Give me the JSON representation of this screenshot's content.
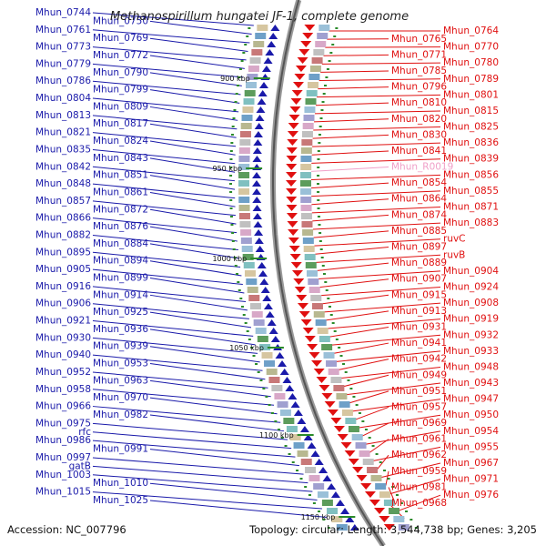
{
  "title": "Methanospirillum hungatei JF-1, complete genome",
  "footer": {
    "accession": "Accession: NC_007796",
    "topology": "Topology: circular; Length: 3,544,738 bp; Genes: 3,205"
  },
  "colors": {
    "left_strand": "#1a1aaa",
    "right_strand": "#e01010",
    "rna": "#f0a0c8",
    "backbone": "#777777"
  },
  "kbp_markers": [
    "900 kbp",
    "950 kbp",
    "1000 kbp",
    "1050 kbp",
    "1100 kbp",
    "1150 kbp"
  ],
  "left_labels": [
    "Mhun_0744",
    "Mhun_0750",
    "Mhun_0761",
    "Mhun_0769",
    "Mhun_0773",
    "Mhun_0772",
    "Mhun_0779",
    "Mhun_0790",
    "Mhun_0786",
    "Mhun_0799",
    "Mhun_0804",
    "Mhun_0809",
    "Mhun_0813",
    "Mhun_0817",
    "Mhun_0821",
    "Mhun_0824",
    "Mhun_0835",
    "Mhun_0843",
    "Mhun_0842",
    "Mhun_0851",
    "Mhun_0848",
    "Mhun_0861",
    "Mhun_0857",
    "Mhun_0872",
    "Mhun_0866",
    "Mhun_0876",
    "Mhun_0882",
    "Mhun_0884",
    "Mhun_0895",
    "Mhun_0894",
    "Mhun_0905",
    "Mhun_0899",
    "Mhun_0916",
    "Mhun_0914",
    "Mhun_0906",
    "Mhun_0925",
    "Mhun_0921",
    "Mhun_0936",
    "Mhun_0930",
    "Mhun_0939",
    "Mhun_0940",
    "Mhun_0953",
    "Mhun_0952",
    "Mhun_0963",
    "Mhun_0958",
    "Mhun_0970",
    "Mhun_0966",
    "Mhun_0982",
    "Mhun_0975",
    "rfc",
    "Mhun_0986",
    "Mhun_0991",
    "Mhun_0997",
    "gatB",
    "Mhun_1003",
    "Mhun_1010",
    "Mhun_1015",
    "Mhun_1025"
  ],
  "right_labels": [
    "Mhun_0764",
    "Mhun_0765",
    "Mhun_0770",
    "Mhun_0771",
    "Mhun_0780",
    "Mhun_0785",
    "Mhun_0789",
    "Mhun_0796",
    "Mhun_0801",
    "Mhun_0810",
    "Mhun_0815",
    "Mhun_0820",
    "Mhun_0825",
    "Mhun_0830",
    "Mhun_0836",
    "Mhun_0841",
    "Mhun_0839",
    "Mhun_R0019",
    "Mhun_0856",
    "Mhun_0854",
    "Mhun_0855",
    "Mhun_0864",
    "Mhun_0871",
    "Mhun_0874",
    "Mhun_0883",
    "Mhun_0885",
    "ruvC",
    "Mhun_0897",
    "ruvB",
    "Mhun_0889",
    "Mhun_0904",
    "Mhun_0907",
    "Mhun_0924",
    "Mhun_0915",
    "Mhun_0908",
    "Mhun_0913",
    "Mhun_0919",
    "Mhun_0931",
    "Mhun_0932",
    "Mhun_0941",
    "Mhun_0933",
    "Mhun_0942",
    "Mhun_0948",
    "Mhun_0949",
    "Mhun_0943",
    "Mhun_0951",
    "Mhun_0947",
    "Mhun_0957",
    "Mhun_0950",
    "Mhun_0969",
    "Mhun_0954",
    "Mhun_0961",
    "Mhun_0955",
    "Mhun_0962",
    "Mhun_0967",
    "Mhun_0959",
    "Mhun_0971",
    "Mhun_0981",
    "Mhun_0976",
    "Mhun_0968"
  ]
}
